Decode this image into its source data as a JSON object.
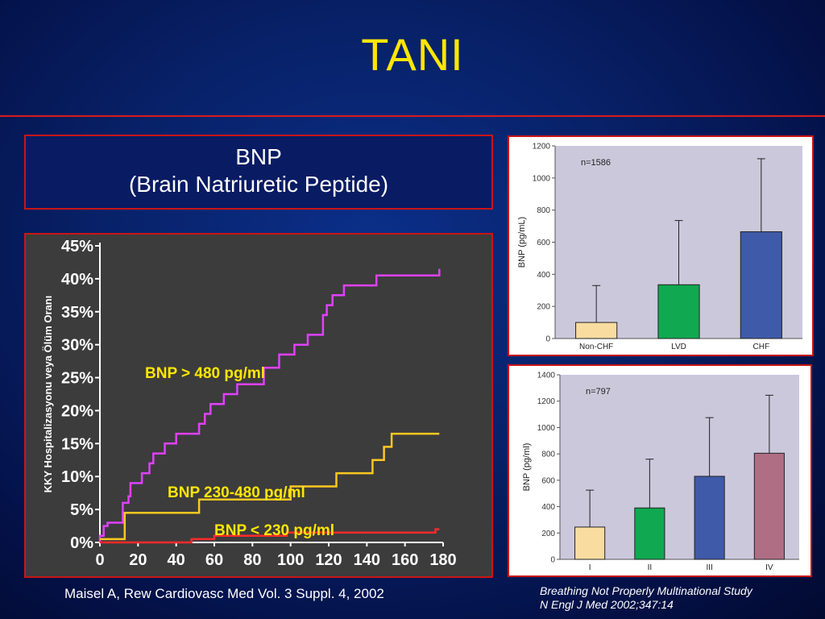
{
  "slide": {
    "title": "TANI",
    "bnp_box": {
      "line1": "BNP",
      "line2": "(Brain Natriuretic Peptide)"
    },
    "citation_left": "Maisel A, Rew Cardiovasc Med Vol. 3 Suppl. 4, 2002",
    "citation_right": {
      "line1": "Breathing Not Properly Multinational Study",
      "line2": "N Engl J Med 2002;347:14"
    },
    "colors": {
      "title": "#ffe600",
      "rule": "#d81b1b",
      "frame": "#c81616"
    }
  },
  "chart_data": [
    {
      "type": "line",
      "ylabel": "KKY Hospitalizasyonu veya Ölüm Oranı",
      "xlabel": "",
      "xlim": [
        0,
        180
      ],
      "ylim": [
        0,
        45
      ],
      "x_ticks": [
        "0",
        "20",
        "40",
        "60",
        "80",
        "100",
        "120",
        "140",
        "160",
        "180"
      ],
      "y_ticks": [
        "0%",
        "5%",
        "10%",
        "15%",
        "20%",
        "25%",
        "30%",
        "35%",
        "40%",
        "45%"
      ],
      "series": [
        {
          "name": "BNP > 480 pg/ml",
          "color": "#e040ff",
          "points": [
            [
              0,
              0
            ],
            [
              0,
              1
            ],
            [
              2,
              1
            ],
            [
              2,
              2.5
            ],
            [
              4,
              2.5
            ],
            [
              4,
              3
            ],
            [
              12,
              3
            ],
            [
              12,
              6
            ],
            [
              15,
              6
            ],
            [
              15,
              7
            ],
            [
              16,
              7
            ],
            [
              16,
              9
            ],
            [
              22,
              9
            ],
            [
              22,
              10.5
            ],
            [
              26,
              10.5
            ],
            [
              26,
              12
            ],
            [
              28,
              12
            ],
            [
              28,
              13.5
            ],
            [
              34,
              13.5
            ],
            [
              34,
              15
            ],
            [
              40,
              15
            ],
            [
              40,
              16.5
            ],
            [
              52,
              16.5
            ],
            [
              52,
              18
            ],
            [
              55,
              18
            ],
            [
              55,
              19.5
            ],
            [
              58,
              19.5
            ],
            [
              58,
              21
            ],
            [
              65,
              21
            ],
            [
              65,
              22.5
            ],
            [
              72,
              22.5
            ],
            [
              72,
              24
            ],
            [
              86,
              24
            ],
            [
              86,
              26.5
            ],
            [
              94,
              26.5
            ],
            [
              94,
              28.5
            ],
            [
              102,
              28.5
            ],
            [
              102,
              30
            ],
            [
              109,
              30
            ],
            [
              109,
              31.5
            ],
            [
              117,
              31.5
            ],
            [
              117,
              34.5
            ],
            [
              119,
              34.5
            ],
            [
              119,
              36
            ],
            [
              122,
              36
            ],
            [
              122,
              37.5
            ],
            [
              128,
              37.5
            ],
            [
              128,
              39
            ],
            [
              145,
              39
            ],
            [
              145,
              40.5
            ],
            [
              178,
              40.5
            ],
            [
              178,
              41.5
            ]
          ]
        },
        {
          "name": "BNP 230-480 pg/ml",
          "color": "#ffc820",
          "points": [
            [
              0,
              0.5
            ],
            [
              13,
              0.5
            ],
            [
              13,
              4.5
            ],
            [
              52,
              4.5
            ],
            [
              52,
              6.5
            ],
            [
              100,
              6.5
            ],
            [
              100,
              8.5
            ],
            [
              124,
              8.5
            ],
            [
              124,
              10.5
            ],
            [
              143,
              10.5
            ],
            [
              143,
              12.5
            ],
            [
              149,
              12.5
            ],
            [
              149,
              14.5
            ],
            [
              153,
              14.5
            ],
            [
              153,
              16.5
            ],
            [
              178,
              16.5
            ]
          ]
        },
        {
          "name": "BNP < 230 pg/ml",
          "color": "#ff2a2a",
          "points": [
            [
              0,
              0
            ],
            [
              48,
              0
            ],
            [
              48,
              0.5
            ],
            [
              60,
              0.5
            ],
            [
              60,
              1
            ],
            [
              98,
              1
            ],
            [
              98,
              1.5
            ],
            [
              176,
              1.5
            ],
            [
              176,
              2
            ],
            [
              178,
              2
            ]
          ]
        }
      ],
      "annotations": [
        "BNP > 480 pg/ml",
        "BNP 230-480 pg/ml",
        "BNP < 230 pg/ml"
      ]
    },
    {
      "type": "bar",
      "annotation": "n=1586",
      "ylabel": "BNP (pg/mL)",
      "ylim": [
        0,
        1200
      ],
      "y_ticks": [
        "0",
        "200",
        "400",
        "600",
        "800",
        "1000",
        "1200"
      ],
      "categories": [
        "Non-CHF",
        "LVD",
        "CHF"
      ],
      "values": [
        100,
        335,
        665
      ],
      "error_upper": [
        330,
        735,
        1120
      ],
      "colors": [
        "#f8dca0",
        "#10a850",
        "#3e5aa8"
      ],
      "background": "#ccc8dc"
    },
    {
      "type": "bar",
      "annotation": "n=797",
      "ylabel": "BNP (pg/ml)",
      "ylim": [
        0,
        1400
      ],
      "y_ticks": [
        "0",
        "200",
        "400",
        "600",
        "800",
        "1000",
        "1200",
        "1400"
      ],
      "categories": [
        "I",
        "II",
        "III",
        "IV"
      ],
      "values": [
        245,
        390,
        630,
        805
      ],
      "error_upper": [
        525,
        760,
        1075,
        1245
      ],
      "colors": [
        "#f8dca0",
        "#10a850",
        "#3e5aa8",
        "#b06e84"
      ],
      "background": "#ccc8dc"
    }
  ]
}
